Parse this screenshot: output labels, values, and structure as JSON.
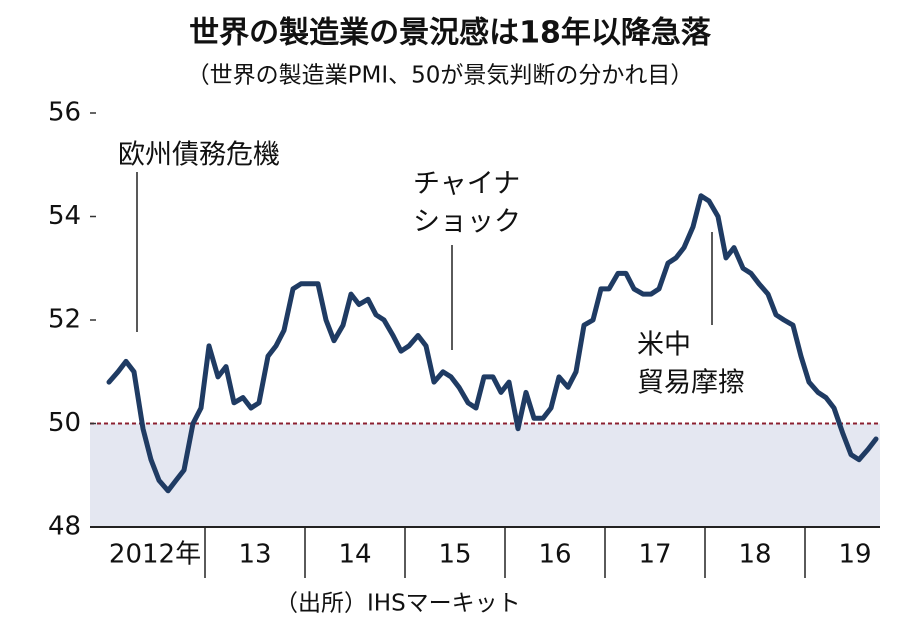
{
  "chart_data": {
    "type": "line",
    "title": "世界の製造業の景況感は18年以降急落",
    "subtitle": "（世界の製造業PMI、50が景気判断の分かれ目）",
    "source": "（出所）IHSマーキット",
    "annotations": [
      [
        "欧州債務危機"
      ],
      [
        "チャイナ",
        "ショック"
      ],
      [
        "米中",
        "貿易摩擦"
      ]
    ],
    "xlim": [
      2011.85,
      2019.75
    ],
    "xticks": [
      {
        "value": 2012.5,
        "label": "2012年"
      },
      {
        "value": 2013.5,
        "label": "13"
      },
      {
        "value": 2014.5,
        "label": "14"
      },
      {
        "value": 2015.5,
        "label": "15"
      },
      {
        "value": 2016.5,
        "label": "16"
      },
      {
        "value": 2017.5,
        "label": "17"
      },
      {
        "value": 2018.5,
        "label": "18"
      },
      {
        "value": 2019.5,
        "label": "19"
      }
    ],
    "ylim": [
      48,
      56
    ],
    "yticks": [
      48,
      50,
      52,
      54,
      56
    ],
    "reference_line": 50,
    "reference_color": "#8b2030",
    "shade_color": "#e4e7f1",
    "x": [
      2012.04,
      2012.13,
      2012.21,
      2012.29,
      2012.38,
      2012.46,
      2012.54,
      2012.63,
      2012.71,
      2012.79,
      2012.88,
      2012.96,
      2013.04,
      2013.13,
      2013.21,
      2013.29,
      2013.38,
      2013.46,
      2013.54,
      2013.63,
      2013.71,
      2013.79,
      2013.88,
      2013.96,
      2014.04,
      2014.13,
      2014.21,
      2014.29,
      2014.38,
      2014.46,
      2014.54,
      2014.63,
      2014.71,
      2014.79,
      2014.88,
      2014.96,
      2015.04,
      2015.13,
      2015.21,
      2015.29,
      2015.38,
      2015.46,
      2015.54,
      2015.63,
      2015.71,
      2015.79,
      2015.88,
      2015.96,
      2016.04,
      2016.13,
      2016.21,
      2016.29,
      2016.38,
      2016.46,
      2016.54,
      2016.63,
      2016.71,
      2016.79,
      2016.88,
      2016.96,
      2017.04,
      2017.13,
      2017.21,
      2017.29,
      2017.38,
      2017.46,
      2017.54,
      2017.63,
      2017.71,
      2017.79,
      2017.88,
      2017.96,
      2018.04,
      2018.13,
      2018.21,
      2018.29,
      2018.38,
      2018.46,
      2018.54,
      2018.63,
      2018.71,
      2018.79,
      2018.88,
      2018.96,
      2019.04,
      2019.13,
      2019.21,
      2019.29,
      2019.38,
      2019.46,
      2019.54,
      2019.63,
      2019.71
    ],
    "series": [
      {
        "name": "世界の製造業PMI",
        "color": "#1f3b63",
        "values": [
          50.8,
          51.0,
          51.2,
          51.0,
          49.9,
          49.3,
          48.9,
          48.7,
          48.9,
          49.1,
          50.0,
          50.3,
          51.5,
          50.9,
          51.1,
          50.4,
          50.5,
          50.3,
          50.4,
          51.3,
          51.5,
          51.8,
          52.6,
          52.7,
          52.7,
          52.7,
          52.0,
          51.6,
          51.9,
          52.5,
          52.3,
          52.4,
          52.1,
          52.0,
          51.7,
          51.4,
          51.5,
          51.7,
          51.5,
          50.8,
          51.0,
          50.9,
          50.7,
          50.4,
          50.3,
          50.9,
          50.9,
          50.6,
          50.8,
          49.9,
          50.6,
          50.1,
          50.1,
          50.3,
          50.9,
          50.7,
          51.0,
          51.9,
          52.0,
          52.6,
          52.6,
          52.9,
          52.9,
          52.6,
          52.5,
          52.5,
          52.6,
          53.1,
          53.2,
          53.4,
          53.8,
          54.4,
          54.3,
          54.0,
          53.2,
          53.4,
          53.0,
          52.9,
          52.7,
          52.5,
          52.1,
          52.0,
          51.9,
          51.3,
          50.8,
          50.6,
          50.5,
          50.3,
          49.8,
          49.4,
          49.3,
          49.5,
          49.7
        ]
      }
    ]
  }
}
